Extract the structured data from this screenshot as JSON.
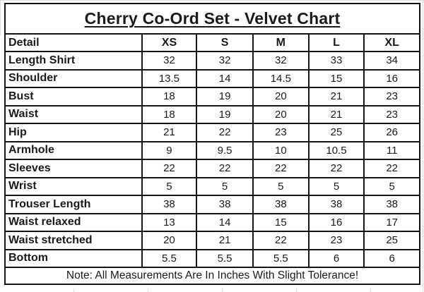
{
  "chart_data": {
    "type": "table",
    "title": "Cherry Co-Ord Set - Velvet Chart",
    "columns": [
      "Detail",
      "XS",
      "S",
      "M",
      "L",
      "XL"
    ],
    "rows": [
      {
        "label": "Length Shirt",
        "values": [
          "32",
          "32",
          "32",
          "33",
          "34"
        ]
      },
      {
        "label": "Shoulder",
        "values": [
          "13.5",
          "14",
          "14.5",
          "15",
          "16"
        ]
      },
      {
        "label": "Bust",
        "values": [
          "18",
          "19",
          "20",
          "21",
          "23"
        ]
      },
      {
        "label": "Waist",
        "values": [
          "18",
          "19",
          "20",
          "21",
          "23"
        ]
      },
      {
        "label": "Hip",
        "values": [
          "21",
          "22",
          "23",
          "25",
          "26"
        ]
      },
      {
        "label": "Armhole",
        "values": [
          "9",
          "9.5",
          "10",
          "10.5",
          "11"
        ]
      },
      {
        "label": "Sleeves",
        "values": [
          "22",
          "22",
          "22",
          "22",
          "22"
        ]
      },
      {
        "label": "Wrist",
        "values": [
          "5",
          "5",
          "5",
          "5",
          "5"
        ]
      },
      {
        "label": "Trouser Length",
        "values": [
          "38",
          "38",
          "38",
          "38",
          "38"
        ]
      },
      {
        "label": "Waist relaxed",
        "values": [
          "13",
          "14",
          "15",
          "16",
          "17"
        ]
      },
      {
        "label": "Waist stretched",
        "values": [
          "20",
          "21",
          "22",
          "23",
          "25"
        ]
      },
      {
        "label": "Bottom",
        "values": [
          "5.5",
          "5.5",
          "5.5",
          "6",
          "6"
        ]
      }
    ],
    "note": "Note: All Measurements Are In Inches With Slight Tolerance!"
  },
  "colors": {
    "background": "#ffffff",
    "border": "#161616",
    "text": "#1a1a1a",
    "gridline": "#dcdcdc"
  }
}
